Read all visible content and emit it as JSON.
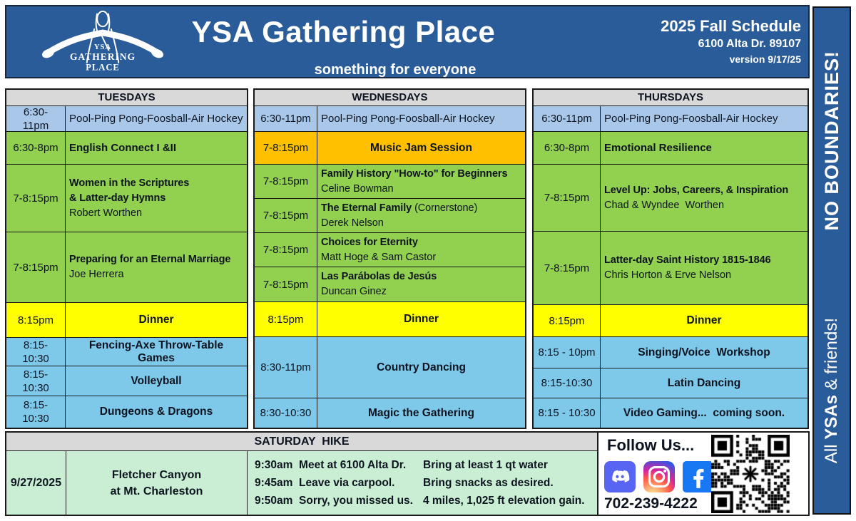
{
  "header": {
    "title": "YSA Gathering Place",
    "subtitle": "something for everyone",
    "schedule_title": "2025 Fall Schedule",
    "address": "6100 Alta Dr. 89107",
    "version": "version 9/17/25",
    "logo_line1": "YSA",
    "logo_line2": "GATHERING",
    "logo_line3": "PLACE"
  },
  "sidebar": {
    "top_text": "NO BOUNDARIES!",
    "bottom_pre": "All ",
    "bottom_bold": "YSAs",
    "bottom_post": " & friends!"
  },
  "theme": {
    "header_blue": "#2B5C9A",
    "pool_blue": "#A9C8E9",
    "class_green": "#92D050",
    "dinner_yellow": "#FFFF00",
    "music_orange": "#FFC000",
    "activity_sky": "#7EC8EA",
    "hike_mint": "#C9EED3",
    "header_gray": "#D9D9D9",
    "discord_purple": "#5865F2",
    "facebook_blue": "#1877F2"
  },
  "columns": [
    {
      "day": "TUESDAYS",
      "rows": [
        {
          "time": "6:30-\n11pm",
          "color": "blue",
          "type": "plain",
          "title": "Pool-Ping Pong-Foosball-Air Hockey"
        },
        {
          "time": "6:30-8pm",
          "color": "green",
          "type": "bold",
          "title": "English Connect I &II"
        },
        {
          "time": "7-8:15pm",
          "color": "green",
          "type": "session",
          "title": "Women in the Scriptures\n& Latter-day Hymns",
          "presenter": "Robert Worthen"
        },
        {
          "time": "7-8:15pm",
          "color": "green",
          "type": "session",
          "title": "Preparing for an Eternal Marriage",
          "presenter": "Joe Herrera"
        },
        {
          "time": "8:15pm",
          "color": "yellow",
          "type": "center",
          "title": "Dinner"
        },
        {
          "time": "8:15-\n10:30",
          "color": "sky",
          "type": "center",
          "title": "Fencing-Axe Throw-Table Games"
        },
        {
          "time": "8:15-\n10:30",
          "color": "sky",
          "type": "center",
          "title": "Volleyball"
        },
        {
          "time": "8:15-\n10:30",
          "color": "sky",
          "type": "center",
          "title": "Dungeons & Dragons"
        }
      ]
    },
    {
      "day": "WEDNESDAYS",
      "rows": [
        {
          "time": "6:30-11pm",
          "color": "blue",
          "type": "plain",
          "title": "Pool-Ping Pong-Foosball-Air Hockey"
        },
        {
          "time": "7-8:15pm",
          "color": "orange",
          "type": "center",
          "title": "Music Jam Session"
        },
        {
          "time": "7-8:15pm",
          "color": "green",
          "type": "session",
          "title": "Family History \"How-to\" for Beginners",
          "presenter": "Celine Bowman"
        },
        {
          "time": "7-8:15pm",
          "color": "green",
          "type": "session",
          "title": "The Eternal Family",
          "suffix": " (Cornerstone)",
          "presenter": "Derek Nelson"
        },
        {
          "time": "7-8:15pm",
          "color": "green",
          "type": "session",
          "title": "Choices for Eternity",
          "presenter": "Matt Hoge & Sam Castor"
        },
        {
          "time": "7-8:15pm",
          "color": "green",
          "type": "session",
          "title": "Las Parábolas de Jesús",
          "presenter": "Duncan Ginez"
        },
        {
          "time": "8:15pm",
          "color": "yellow",
          "type": "center",
          "title": "Dinner"
        },
        {
          "time": "8:30-11pm",
          "color": "sky",
          "type": "center",
          "title": "Country Dancing"
        },
        {
          "time": "8:30-10:30",
          "color": "sky",
          "type": "center",
          "title": "Magic the Gathering"
        }
      ]
    },
    {
      "day": "THURSDAYS",
      "rows": [
        {
          "time": "6:30-11pm",
          "color": "blue",
          "type": "plain",
          "title": "Pool-Ping Pong-Foosball-Air Hockey"
        },
        {
          "time": "6:30-8pm",
          "color": "green",
          "type": "bold",
          "title": "Emotional Resilience"
        },
        {
          "time": "7-8:15pm",
          "color": "green",
          "type": "session",
          "title": "Level Up: Jobs, Careers, & Inspiration",
          "presenter": "Chad & Wyndee  Worthen"
        },
        {
          "time": "7-8:15pm",
          "color": "green",
          "type": "session",
          "title": "Latter-day Saint History 1815-1846",
          "presenter": "Chris Horton & Erve Nelson"
        },
        {
          "time": "8:15pm",
          "color": "yellow",
          "type": "center",
          "title": "Dinner"
        },
        {
          "time": "8:15 - 10pm",
          "color": "sky",
          "type": "center",
          "title": "Singing/Voice  Workshop"
        },
        {
          "time": "8:15-10:30",
          "color": "sky",
          "type": "center",
          "title": "Latin Dancing"
        },
        {
          "time": "8:15 - 10:30",
          "color": "sky",
          "type": "center",
          "title": "Video Gaming...  coming soon."
        }
      ]
    }
  ],
  "saturday": {
    "header": "SATURDAY  HIKE",
    "date": "9/27/2025",
    "location": "Fletcher Canyon\nat Mt. Charleston",
    "schedule": [
      [
        "9:30am  Meet at 6100 Alta Dr.",
        "Bring at least 1 qt water"
      ],
      [
        "9:45am  Leave via carpool.",
        "Bring snacks as desired."
      ],
      [
        "9:50am  Sorry, you missed us.",
        "4 miles, 1,025 ft elevation gain."
      ]
    ]
  },
  "follow": {
    "title": "Follow Us...",
    "phone": "702-239-4222",
    "icons": [
      "discord",
      "instagram",
      "facebook"
    ]
  }
}
